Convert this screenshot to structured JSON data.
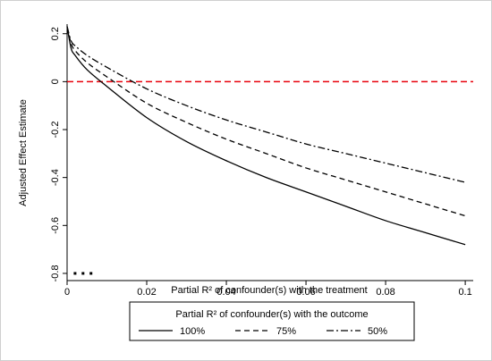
{
  "chart_data": {
    "type": "line",
    "title": "",
    "xlabel": "Partial R² of confounder(s) with the treatment",
    "ylabel": "Adjusted Effect Estimate",
    "xlim": [
      0,
      0.102
    ],
    "ylim": [
      -0.83,
      0.24
    ],
    "x_ticks": [
      "0",
      "0.02",
      "0.04",
      "0.06",
      "0.08",
      "0.1"
    ],
    "y_ticks": [
      "0.2",
      "0",
      "-0.2",
      "-0.4",
      "-0.6",
      "-0.8"
    ],
    "x_tick_values": [
      0,
      0.02,
      0.04,
      0.06,
      0.08,
      0.1
    ],
    "y_tick_values": [
      0.2,
      0,
      -0.2,
      -0.4,
      -0.6,
      -0.8
    ],
    "reference_line": {
      "y": 0,
      "color": "#e8000b",
      "style": "dashed"
    },
    "x": [
      0,
      0.001,
      0.002,
      0.005,
      0.01,
      0.02,
      0.03,
      0.04,
      0.05,
      0.06,
      0.07,
      0.08,
      0.09,
      0.1
    ],
    "series": [
      {
        "name": "100%",
        "style": "solid",
        "values": [
          0.23,
          0.14,
          0.11,
          0.05,
          -0.02,
          -0.15,
          -0.25,
          -0.33,
          -0.4,
          -0.46,
          -0.52,
          -0.58,
          -0.63,
          -0.68
        ]
      },
      {
        "name": "75%",
        "style": "dashed",
        "values": [
          0.23,
          0.16,
          0.13,
          0.08,
          0.02,
          -0.09,
          -0.17,
          -0.24,
          -0.3,
          -0.36,
          -0.41,
          -0.46,
          -0.51,
          -0.56
        ]
      },
      {
        "name": "50%",
        "style": "dashdot",
        "values": [
          0.23,
          0.17,
          0.15,
          0.11,
          0.06,
          -0.03,
          -0.1,
          -0.16,
          -0.21,
          -0.26,
          -0.3,
          -0.34,
          -0.38,
          -0.42
        ]
      }
    ],
    "markers": [
      {
        "x": 0.002,
        "y": -0.8
      },
      {
        "x": 0.004,
        "y": -0.8
      },
      {
        "x": 0.006,
        "y": -0.8
      }
    ],
    "legend": {
      "title": "Partial R² of confounder(s) with the outcome",
      "placement": "bottom"
    }
  }
}
